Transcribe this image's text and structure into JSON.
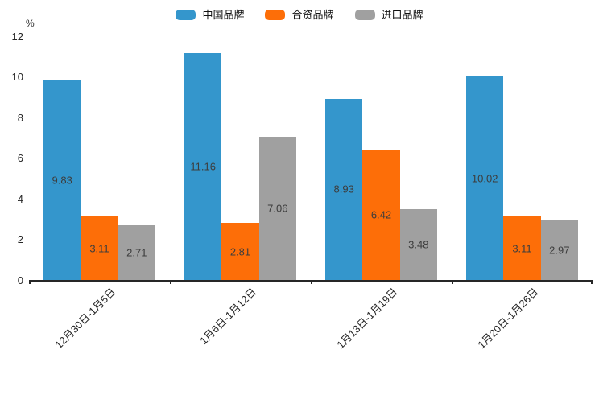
{
  "chart_data": {
    "type": "bar",
    "title": "",
    "unit_label": "%",
    "categories": [
      "12月30日-1月5日",
      "1月6日-1月12日",
      "1月13日-1月19日",
      "1月20日-1月26日"
    ],
    "series": [
      {
        "name": "中国品牌",
        "color": "#3496cc",
        "values": [
          9.83,
          11.16,
          8.93,
          10.02
        ]
      },
      {
        "name": "合资品牌",
        "color": "#fd6e08",
        "values": [
          3.11,
          2.81,
          6.42,
          3.11
        ]
      },
      {
        "name": "进口品牌",
        "color": "#a0a0a0",
        "values": [
          2.71,
          7.06,
          3.48,
          2.97
        ]
      }
    ],
    "ylim": [
      0,
      12
    ],
    "yticks": [
      0,
      2,
      4,
      6,
      8,
      10,
      12
    ],
    "grid": false,
    "legend_position": "top-center",
    "value_labels": "inside-center",
    "value_label_decimals": 2,
    "xtick_rotation_deg": 45,
    "axis_color": "#262626",
    "value_label_color": "#3d3d3d"
  }
}
